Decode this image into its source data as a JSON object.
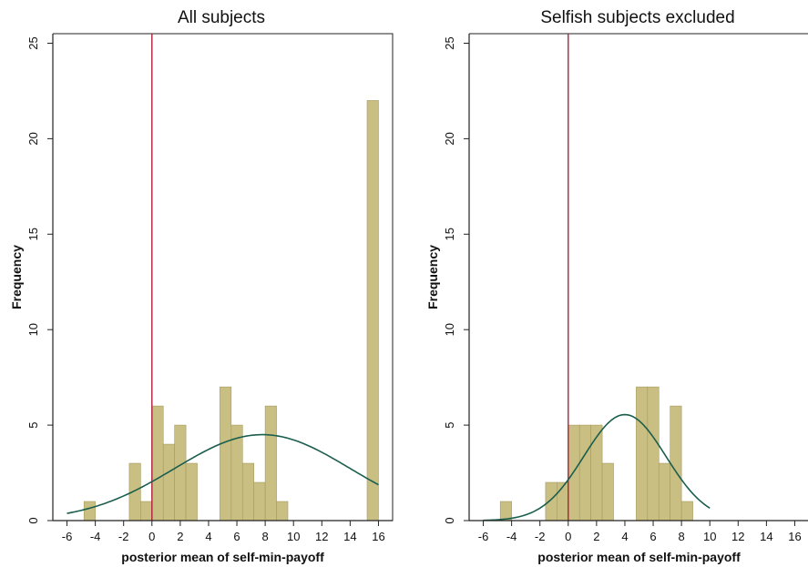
{
  "chart_data": [
    {
      "type": "bar",
      "title": "All subjects",
      "xlabel": "posterior mean of self-min-payoff",
      "ylabel": "Frequency",
      "xlim": [
        -7,
        17
      ],
      "ylim": [
        0,
        25.5
      ],
      "xticks": [
        -6,
        -4,
        -2,
        0,
        2,
        4,
        6,
        8,
        10,
        12,
        14,
        16
      ],
      "yticks": [
        0,
        5,
        10,
        15,
        20,
        25
      ],
      "bin_width": 0.8,
      "bins": [
        {
          "x": -4.4,
          "count": 1
        },
        {
          "x": -1.2,
          "count": 3
        },
        {
          "x": -0.4,
          "count": 1
        },
        {
          "x": 0.4,
          "count": 6
        },
        {
          "x": 1.2,
          "count": 4
        },
        {
          "x": 2.0,
          "count": 5
        },
        {
          "x": 2.8,
          "count": 3
        },
        {
          "x": 5.2,
          "count": 7
        },
        {
          "x": 6.0,
          "count": 5
        },
        {
          "x": 6.8,
          "count": 3
        },
        {
          "x": 7.6,
          "count": 2
        },
        {
          "x": 8.4,
          "count": 6
        },
        {
          "x": 9.2,
          "count": 1
        },
        {
          "x": 15.6,
          "count": 22
        }
      ],
      "normal_curve": {
        "mean": 7.8,
        "sd": 6.2,
        "x_range": [
          -6,
          16
        ],
        "peak": 4.5
      },
      "reference_line_x": 0,
      "colors": {
        "bar_fill": "#c9bf83",
        "bar_stroke": "#a69a5c",
        "curve": "#1a5e4e",
        "refline": "#b0203c"
      }
    },
    {
      "type": "bar",
      "title": "Selfish subjects excluded",
      "xlabel": "posterior mean of self-min-payoff",
      "ylabel": "Frequency",
      "xlim": [
        -7,
        17
      ],
      "ylim": [
        0,
        25.5
      ],
      "xticks": [
        -6,
        -4,
        -2,
        0,
        2,
        4,
        6,
        8,
        10,
        12,
        14,
        16
      ],
      "yticks": [
        0,
        5,
        10,
        15,
        20,
        25
      ],
      "bin_width": 0.8,
      "bins": [
        {
          "x": -4.4,
          "count": 1
        },
        {
          "x": -1.2,
          "count": 2
        },
        {
          "x": -0.4,
          "count": 2
        },
        {
          "x": 0.4,
          "count": 5
        },
        {
          "x": 1.2,
          "count": 5
        },
        {
          "x": 2.0,
          "count": 5
        },
        {
          "x": 2.8,
          "count": 3
        },
        {
          "x": 5.2,
          "count": 7
        },
        {
          "x": 6.0,
          "count": 7
        },
        {
          "x": 6.8,
          "count": 3
        },
        {
          "x": 7.6,
          "count": 6
        },
        {
          "x": 8.4,
          "count": 1
        }
      ],
      "normal_curve": {
        "mean": 4.0,
        "sd": 2.9,
        "x_range": [
          -6,
          10
        ],
        "peak": 5.55
      },
      "reference_line_x": 0,
      "colors": {
        "bar_fill": "#c9bf83",
        "bar_stroke": "#a69a5c",
        "curve": "#1a5e4e",
        "refline": "#b0203c"
      }
    }
  ]
}
